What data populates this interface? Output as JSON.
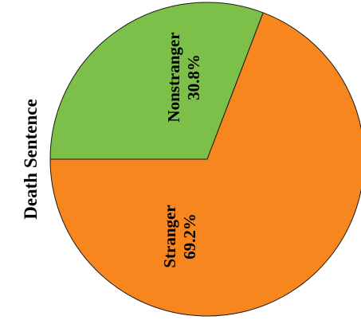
{
  "chart_data": {
    "type": "pie",
    "title": "Death Sentence",
    "slices": [
      {
        "label": "Nonstranger",
        "value": 30.8,
        "value_label": "30.8%",
        "color": "#7cc04a"
      },
      {
        "label": "Stranger",
        "value": 69.2,
        "value_label": "69.2%",
        "color": "#f7861f"
      }
    ],
    "edge_color": "#1a1a1a"
  }
}
